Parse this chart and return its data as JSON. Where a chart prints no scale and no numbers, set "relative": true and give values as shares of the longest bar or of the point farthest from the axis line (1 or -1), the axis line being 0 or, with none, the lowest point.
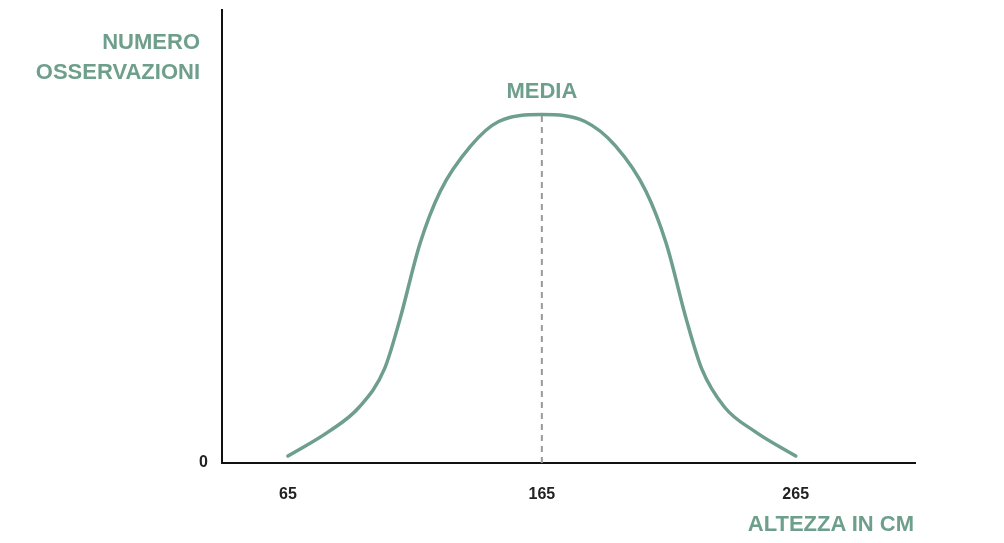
{
  "chart_data": {
    "type": "line",
    "xlabel": "ALTEZZA IN CM",
    "ylabel": "NUMERO OSSERVAZIONI",
    "relative": true,
    "annotations": [
      "0"
    ],
    "x": [
      65,
      81,
      93,
      103,
      109,
      117,
      125,
      137,
      148,
      165,
      182,
      194,
      206,
      214,
      222,
      228,
      237,
      249,
      265
    ],
    "series": [
      {
        "color": "#6e9e8c",
        "values": [
          0.02,
          0.09,
          0.16,
          0.27,
          0.41,
          0.63,
          0.78,
          0.91,
          0.98,
          1,
          0.98,
          0.91,
          0.78,
          0.63,
          0.41,
          0.27,
          0.16,
          0.09,
          0.02
        ]
      }
    ],
    "xlim": [
      39,
      312
    ],
    "xticks": [
      65,
      165,
      265
    ],
    "grid": false,
    "legend": false,
    "marker": "none",
    "line_style": "solid",
    "ref_lines": [
      {
        "axis": "x",
        "value": 165,
        "label": "MEDIA",
        "color": "#999999",
        "line_style": "dashed"
      }
    ]
  }
}
